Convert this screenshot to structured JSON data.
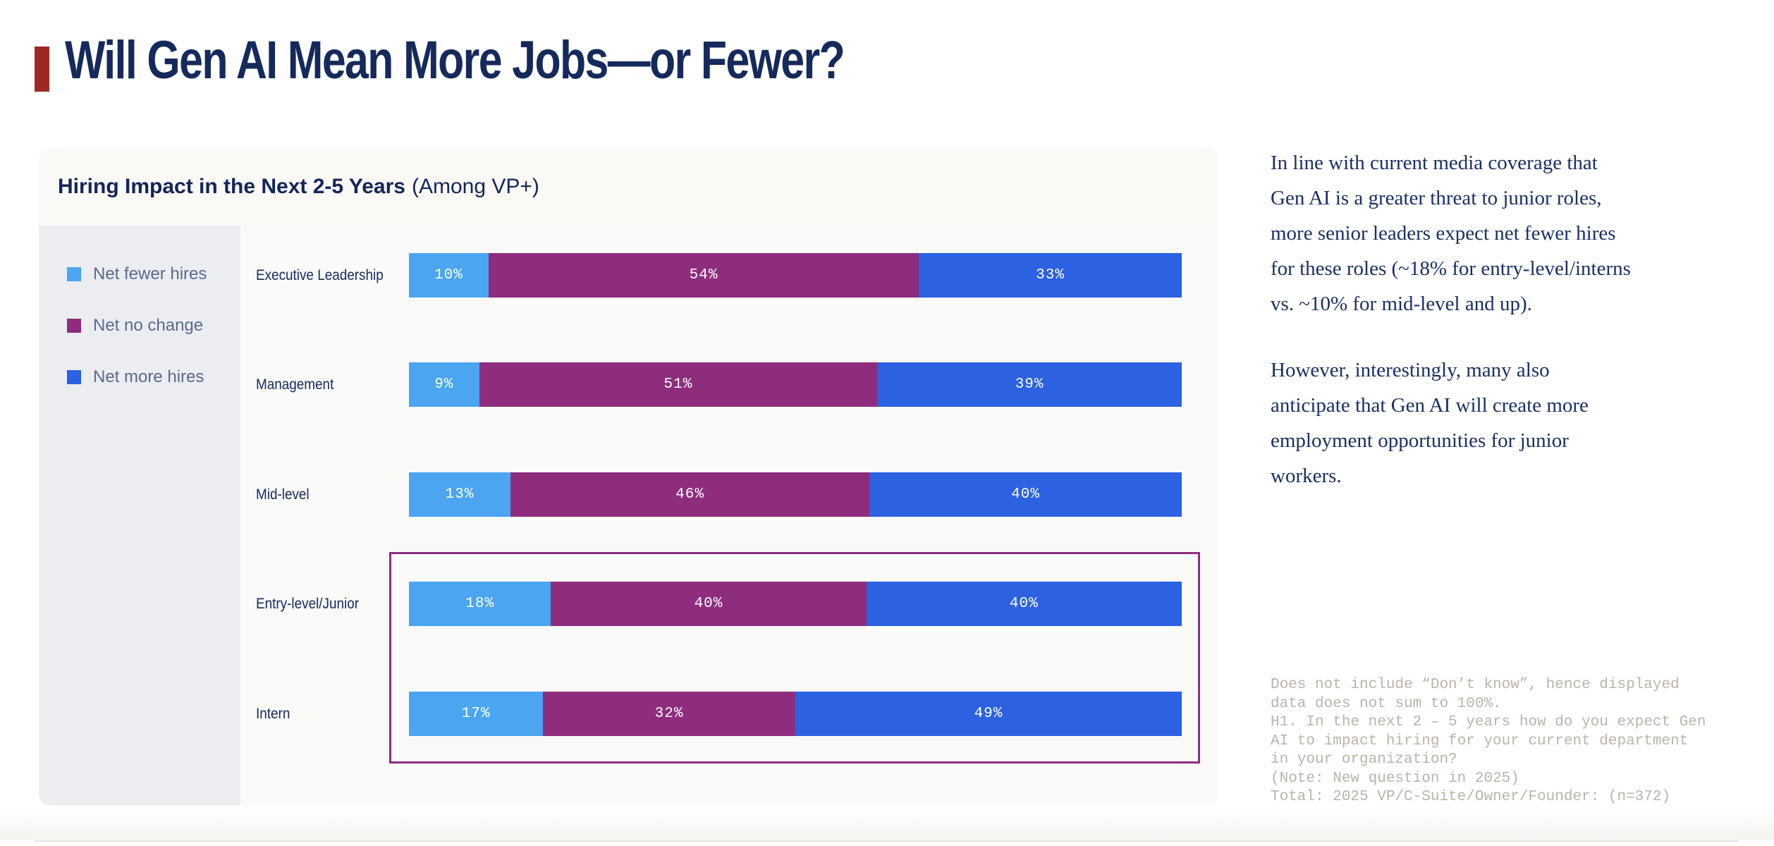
{
  "page": {
    "title": "Will Gen AI Mean More Jobs—or Fewer?"
  },
  "colors": {
    "accent_red": "#9E2723",
    "navy_text": "#16295C",
    "legend_text": "#5A6A8C",
    "net_fewer_hires": "#4BA5F0",
    "net_no_change": "#8E2D7E",
    "net_more_hires": "#2C61E2",
    "highlight_border": "#8E2D7E",
    "footnote_text": "#BAB4A9",
    "card_bg": "#FAFAF8",
    "legend_panel_bg": "#EBEDF1"
  },
  "chart_data": {
    "type": "bar",
    "orientation": "horizontal",
    "stacked": true,
    "title_bold": "Hiring Impact in the Next 2-5 Years",
    "title_note": "(Among VP+)",
    "legend_position": "left",
    "categories": [
      "Executive Leadership",
      "Management",
      "Mid-level",
      "Entry-level/Junior",
      "Intern"
    ],
    "series": [
      {
        "name": "Net fewer hires",
        "color": "#4BA5F0",
        "values": [
          10,
          9,
          13,
          18,
          17
        ]
      },
      {
        "name": "Net no change",
        "color": "#8E2D7E",
        "values": [
          54,
          51,
          46,
          40,
          32
        ]
      },
      {
        "name": "Net more hires",
        "color": "#2C61E2",
        "values": [
          33,
          39,
          40,
          40,
          49
        ]
      }
    ],
    "value_suffix": "%",
    "highlight_categories": [
      "Entry-level/Junior",
      "Intern"
    ]
  },
  "insight": {
    "para1": "In line with current media coverage that\nGen AI is a greater threat to junior roles,\nmore senior leaders expect net fewer hires\nfor these roles (~18% for entry-level/interns\nvs. ~10% for mid-level and up).",
    "para2": "However, interestingly, many also\nanticipate that Gen AI will create more\nemployment opportunities for junior\nworkers."
  },
  "footnote": {
    "text": "Does not include “Don’t know”, hence displayed\ndata does not sum to 100%.\nH1. In the next 2 – 5 years how do you expect Gen\nAI to impact hiring for your current department\nin your organization?\n(Note: New question in 2025)\nTotal: 2025 VP/C-Suite/Owner/Founder: (n=372)"
  }
}
